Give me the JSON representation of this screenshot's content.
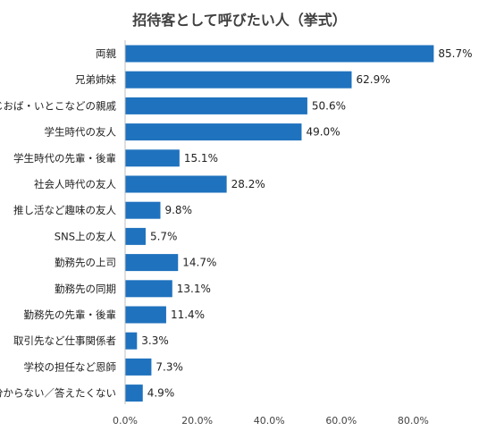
{
  "chart_data": {
    "type": "bar",
    "orientation": "horizontal",
    "title": "招待客として呼びたい人（挙式）",
    "categories": [
      "両親",
      "兄弟姉妹",
      "おじおば・いとこなどの親戚",
      "学生時代の友人",
      "学生時代の先輩・後輩",
      "社会人時代の友人",
      "推し活など趣味の友人",
      "SNS上の友人",
      "勤務先の上司",
      "勤務先の同期",
      "勤務先の先輩・後輩",
      "取引先など仕事関係者",
      "学校の担任など恩師",
      "分からない／答えたくない"
    ],
    "values": [
      85.7,
      62.9,
      50.6,
      49.0,
      15.1,
      28.2,
      9.8,
      5.7,
      14.7,
      13.1,
      11.4,
      3.3,
      7.3,
      4.9
    ],
    "value_labels": [
      "85.7%",
      "62.9%",
      "50.6%",
      "49.0%",
      "15.1%",
      "28.2%",
      "9.8%",
      "5.7%",
      "14.7%",
      "13.1%",
      "11.4%",
      "3.3%",
      "7.3%",
      "4.9%"
    ],
    "xlim": [
      0,
      90
    ],
    "x_ticks": [
      0,
      20,
      40,
      60,
      80
    ],
    "x_tick_labels": [
      "0.0%",
      "20.0%",
      "40.0%",
      "60.0%",
      "80.0%"
    ],
    "grid": false,
    "bar_color": "#1F72BE"
  }
}
